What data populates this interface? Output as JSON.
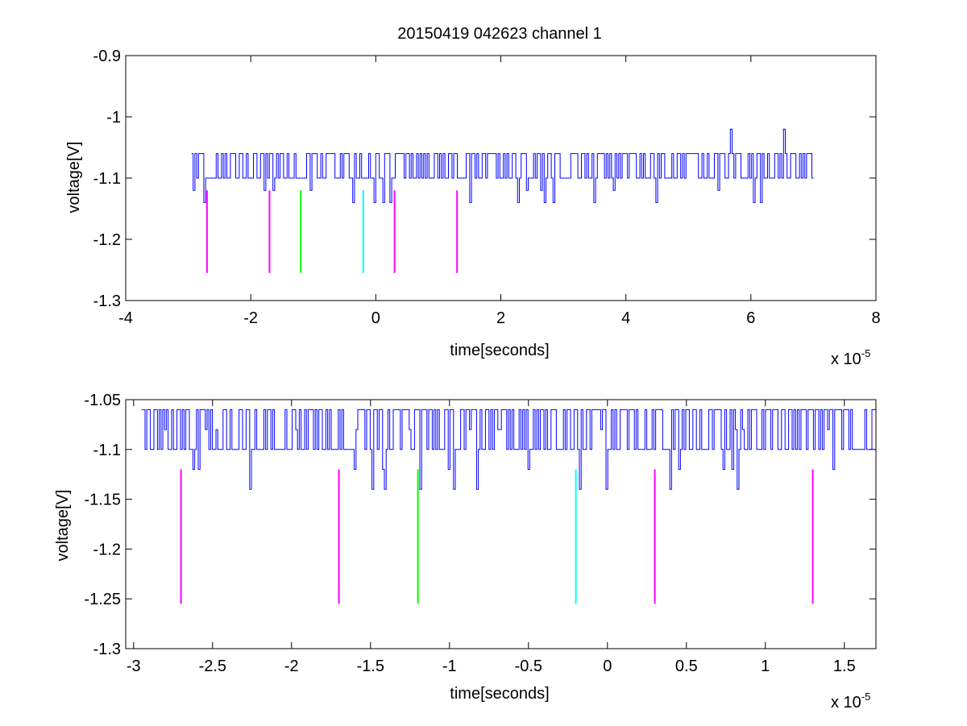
{
  "figure": {
    "title": "20150419 042623 channel 1"
  },
  "chart_data": [
    {
      "type": "line",
      "title": "20150419 042623 channel 1",
      "xlabel": "time[seconds]",
      "ylabel": "voltage[V]",
      "x_multiplier_label": "x 10",
      "x_multiplier_exponent": "-5",
      "xlim": [
        -4e-05,
        8e-05
      ],
      "ylim": [
        -1.3,
        -0.9
      ],
      "xticks": [
        -4e-05,
        -2e-05,
        0,
        2e-05,
        4e-05,
        6e-05,
        8e-05
      ],
      "xtick_labels": [
        "-4",
        "-2",
        "0",
        "2",
        "4",
        "6",
        "8"
      ],
      "yticks": [
        -1.3,
        -1.2,
        -1.1,
        -1.0,
        -0.9
      ],
      "ytick_labels": [
        "-1.3",
        "-1.2",
        "-1.1",
        "-1",
        "-0.9"
      ],
      "grid": false,
      "series": [
        {
          "color": "#0000ff",
          "x_range": [
            -2.95e-05,
            7e-05
          ],
          "baseline": -1.1,
          "levels": [
            -1.06,
            -1.1,
            -1.12,
            -1.14
          ],
          "peaks": [
            {
              "x": 5.65e-05,
              "y": -1.02
            },
            {
              "x": 6.5e-05,
              "y": -1.02
            }
          ]
        }
      ],
      "markers": [
        {
          "x": -2.7e-05,
          "y_top": -1.12,
          "y_bottom": -1.255,
          "color": "#ff00ff"
        },
        {
          "x": -1.7e-05,
          "y_top": -1.12,
          "y_bottom": -1.255,
          "color": "#ff00ff"
        },
        {
          "x": -1.2e-05,
          "y_top": -1.12,
          "y_bottom": -1.255,
          "color": "#00ff00"
        },
        {
          "x": -2e-06,
          "y_top": -1.12,
          "y_bottom": -1.255,
          "color": "#00ffff"
        },
        {
          "x": 3e-06,
          "y_top": -1.12,
          "y_bottom": -1.255,
          "color": "#ff00ff"
        },
        {
          "x": 1.3e-05,
          "y_top": -1.12,
          "y_bottom": -1.255,
          "color": "#ff00ff"
        }
      ]
    },
    {
      "type": "line",
      "title": "",
      "xlabel": "time[seconds]",
      "ylabel": "voltage[V]",
      "x_multiplier_label": "x 10",
      "x_multiplier_exponent": "-5",
      "xlim": [
        -3.05e-05,
        1.7e-05
      ],
      "ylim": [
        -1.3,
        -1.05
      ],
      "xticks": [
        -3e-05,
        -2.5e-05,
        -2e-05,
        -1.5e-05,
        -1e-05,
        -5e-06,
        0,
        5e-06,
        1e-05,
        1.5e-05
      ],
      "xtick_labels": [
        "-3",
        "-2.5",
        "-2",
        "-1.5",
        "-1",
        "-0.5",
        "0",
        "0.5",
        "1",
        "1.5"
      ],
      "yticks": [
        -1.3,
        -1.25,
        -1.2,
        -1.15,
        -1.1,
        -1.05
      ],
      "ytick_labels": [
        "-1.3",
        "-1.25",
        "-1.2",
        "-1.15",
        "-1.1",
        "-1.05"
      ],
      "grid": false,
      "series": [
        {
          "color": "#0000ff",
          "x_range": [
            -2.95e-05,
            1.7e-05
          ],
          "baseline": -1.1,
          "levels": [
            -1.06,
            -1.08,
            -1.1,
            -1.12,
            -1.14
          ]
        }
      ],
      "markers": [
        {
          "x": -2.7e-05,
          "y_top": -1.12,
          "y_bottom": -1.255,
          "color": "#ff00ff"
        },
        {
          "x": -1.7e-05,
          "y_top": -1.12,
          "y_bottom": -1.255,
          "color": "#ff00ff"
        },
        {
          "x": -1.2e-05,
          "y_top": -1.12,
          "y_bottom": -1.255,
          "color": "#00ff00"
        },
        {
          "x": -2e-06,
          "y_top": -1.12,
          "y_bottom": -1.255,
          "color": "#00ffff"
        },
        {
          "x": 3e-06,
          "y_top": -1.12,
          "y_bottom": -1.255,
          "color": "#ff00ff"
        },
        {
          "x": 1.3e-05,
          "y_top": -1.12,
          "y_bottom": -1.255,
          "color": "#ff00ff"
        }
      ]
    }
  ]
}
